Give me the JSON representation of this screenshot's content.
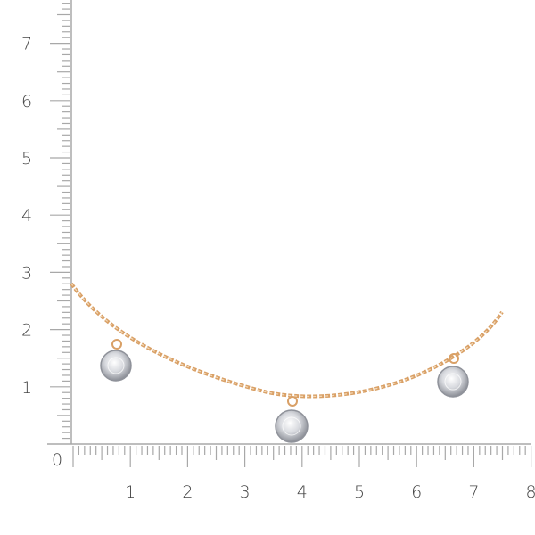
{
  "ruler": {
    "origin_label": "0",
    "x_labels": [
      "1",
      "2",
      "3",
      "4",
      "5",
      "6",
      "7",
      "8"
    ],
    "y_labels": [
      "1",
      "2",
      "3",
      "4",
      "5",
      "6",
      "7"
    ],
    "tick_color": "#a8a8a8",
    "label_color": "#444444"
  },
  "product": {
    "chain_color": "#d9a066",
    "stone_color": "#c9ccd2",
    "pendant_count": 3
  }
}
